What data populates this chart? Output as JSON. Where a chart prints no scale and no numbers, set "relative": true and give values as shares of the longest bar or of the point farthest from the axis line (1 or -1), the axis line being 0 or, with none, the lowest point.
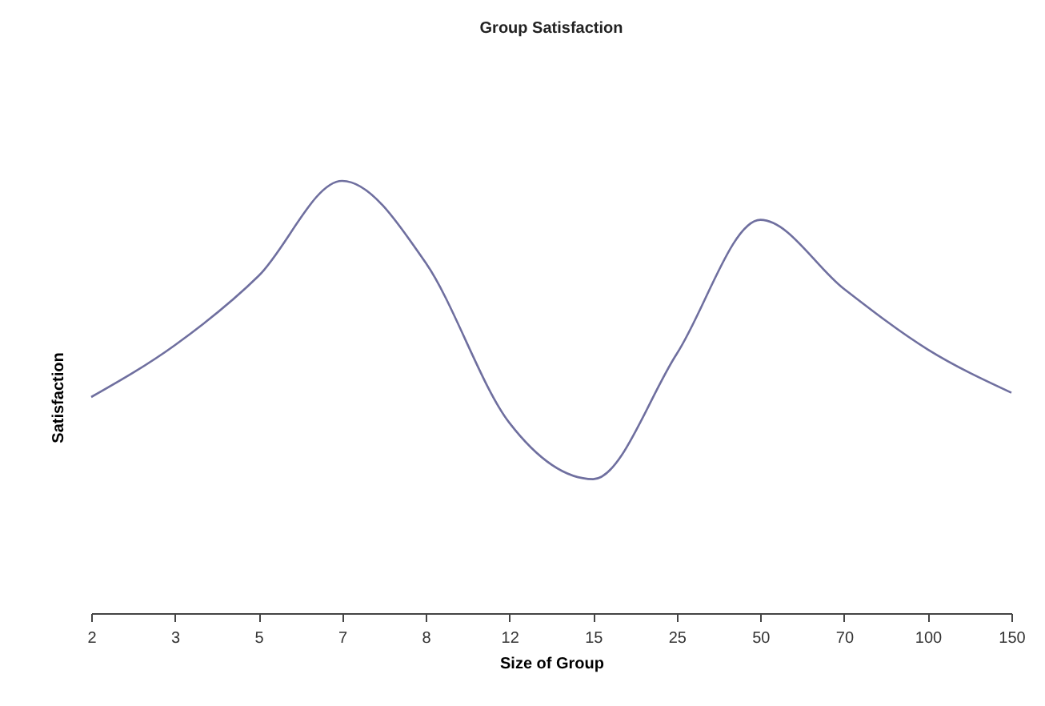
{
  "chart_data": {
    "type": "line",
    "title": "Group Satisfaction",
    "xlabel": "Size of Group",
    "ylabel": "Satisfaction",
    "relative": true,
    "categories": [
      "2",
      "3",
      "5",
      "7",
      "8",
      "12",
      "15",
      "25",
      "50",
      "70",
      "100",
      "150"
    ],
    "series": [
      {
        "color": "#6f6f9f",
        "values": [
          0.5,
          0.62,
          0.78,
          1.0,
          0.81,
          0.44,
          0.31,
          0.6,
          0.91,
          0.75,
          0.61,
          0.51
        ]
      }
    ],
    "grid": false,
    "marker": "none",
    "line_style": "solid"
  }
}
